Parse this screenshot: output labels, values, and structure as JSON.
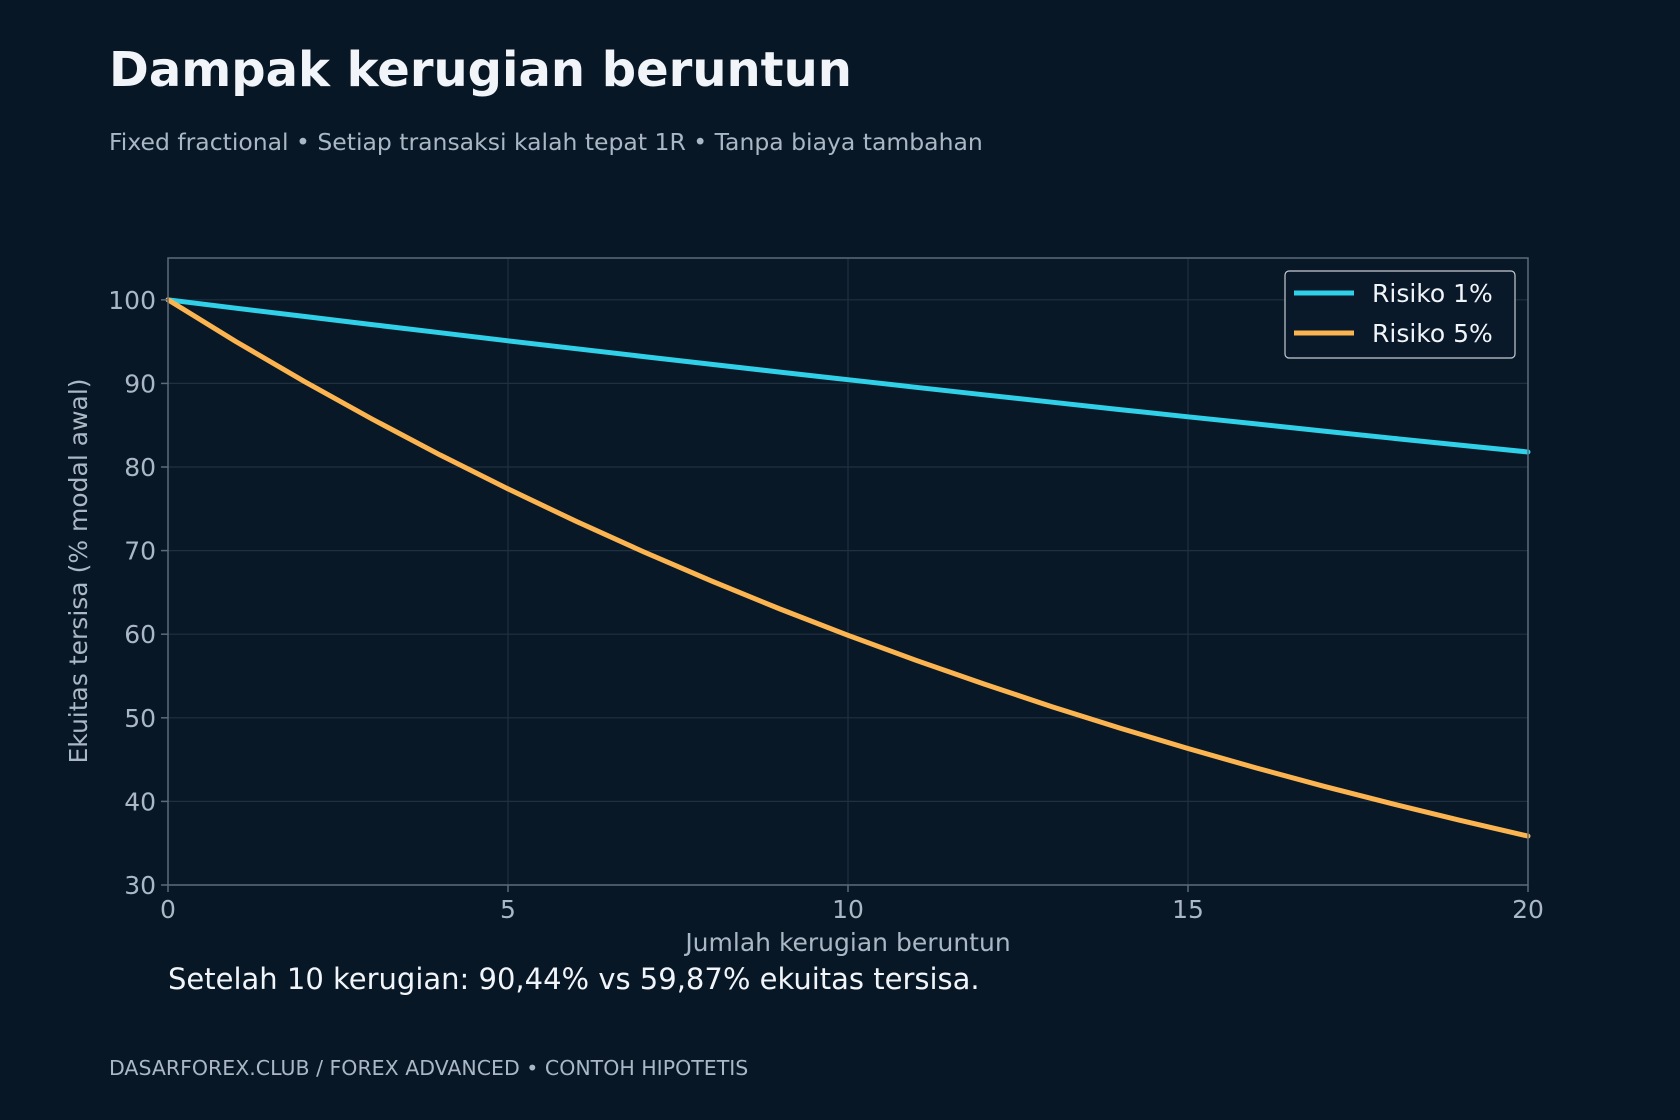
{
  "header": {
    "title": "Dampak kerugian beruntun",
    "subtitle": "Fixed fractional • Setiap transaksi kalah tepat 1R • Tanpa biaya tambahan"
  },
  "annotation": "Setelah 10 kerugian: 90,44% vs 59,87% ekuitas tersisa.",
  "footer": "DASARFOREX.CLUB  /  FOREX ADVANCED  •  CONTOH HIPOTETIS",
  "colors": {
    "background": "#081726",
    "grid": "#1f3040",
    "axis": "#5b6b7b",
    "series_1": "#2fd0e8",
    "series_2": "#fbb450"
  },
  "chart_data": {
    "type": "line",
    "title": "Dampak kerugian beruntun",
    "subtitle": "Fixed fractional • Setiap transaksi kalah tepat 1R • Tanpa biaya tambahan",
    "xlabel": "Jumlah kerugian beruntun",
    "ylabel": "Ekuitas tersisa (% modal awal)",
    "xlim": [
      0,
      20
    ],
    "ylim": [
      30,
      105
    ],
    "xticks": [
      0,
      5,
      10,
      15,
      20
    ],
    "yticks": [
      30,
      40,
      50,
      60,
      70,
      80,
      90,
      100
    ],
    "grid": true,
    "legend_position": "top-right",
    "x": [
      0,
      1,
      2,
      3,
      4,
      5,
      6,
      7,
      8,
      9,
      10,
      11,
      12,
      13,
      14,
      15,
      16,
      17,
      18,
      19,
      20
    ],
    "series": [
      {
        "name": "Risiko 1%",
        "color": "#2fd0e8",
        "values": [
          100,
          99,
          98.01,
          97.03,
          96.06,
          95.1,
          94.15,
          93.21,
          92.27,
          91.35,
          90.44,
          89.53,
          88.64,
          87.75,
          86.87,
          86.01,
          85.15,
          84.29,
          83.45,
          82.62,
          81.79
        ]
      },
      {
        "name": "Risiko 5%",
        "color": "#fbb450",
        "values": [
          100,
          95,
          90.25,
          85.74,
          81.45,
          77.38,
          73.51,
          69.83,
          66.34,
          63.02,
          59.87,
          56.88,
          54.04,
          51.33,
          48.77,
          46.33,
          44.01,
          41.81,
          39.72,
          37.74,
          35.85
        ]
      }
    ]
  }
}
